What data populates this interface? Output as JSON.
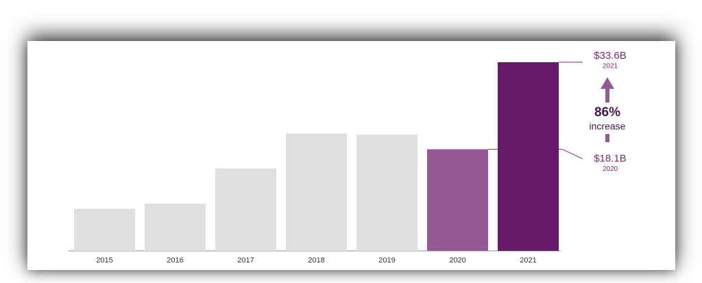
{
  "chart_data": {
    "type": "bar",
    "categories": [
      "2015",
      "2016",
      "2017",
      "2018",
      "2019",
      "2020",
      "2021"
    ],
    "values": [
      7.5,
      8.4,
      14.7,
      20.9,
      20.7,
      18.1,
      33.6
    ],
    "value_labels": [
      null,
      null,
      null,
      null,
      null,
      "$18.1B",
      "$33.6B"
    ],
    "colors": [
      "#e0e0e0",
      "#e0e0e0",
      "#e0e0e0",
      "#e0e0e0",
      "#e0e0e0",
      "#935a95",
      "#661a69"
    ],
    "label_color": "#7a2a7e",
    "annotations": [
      "86%",
      "increase"
    ]
  }
}
